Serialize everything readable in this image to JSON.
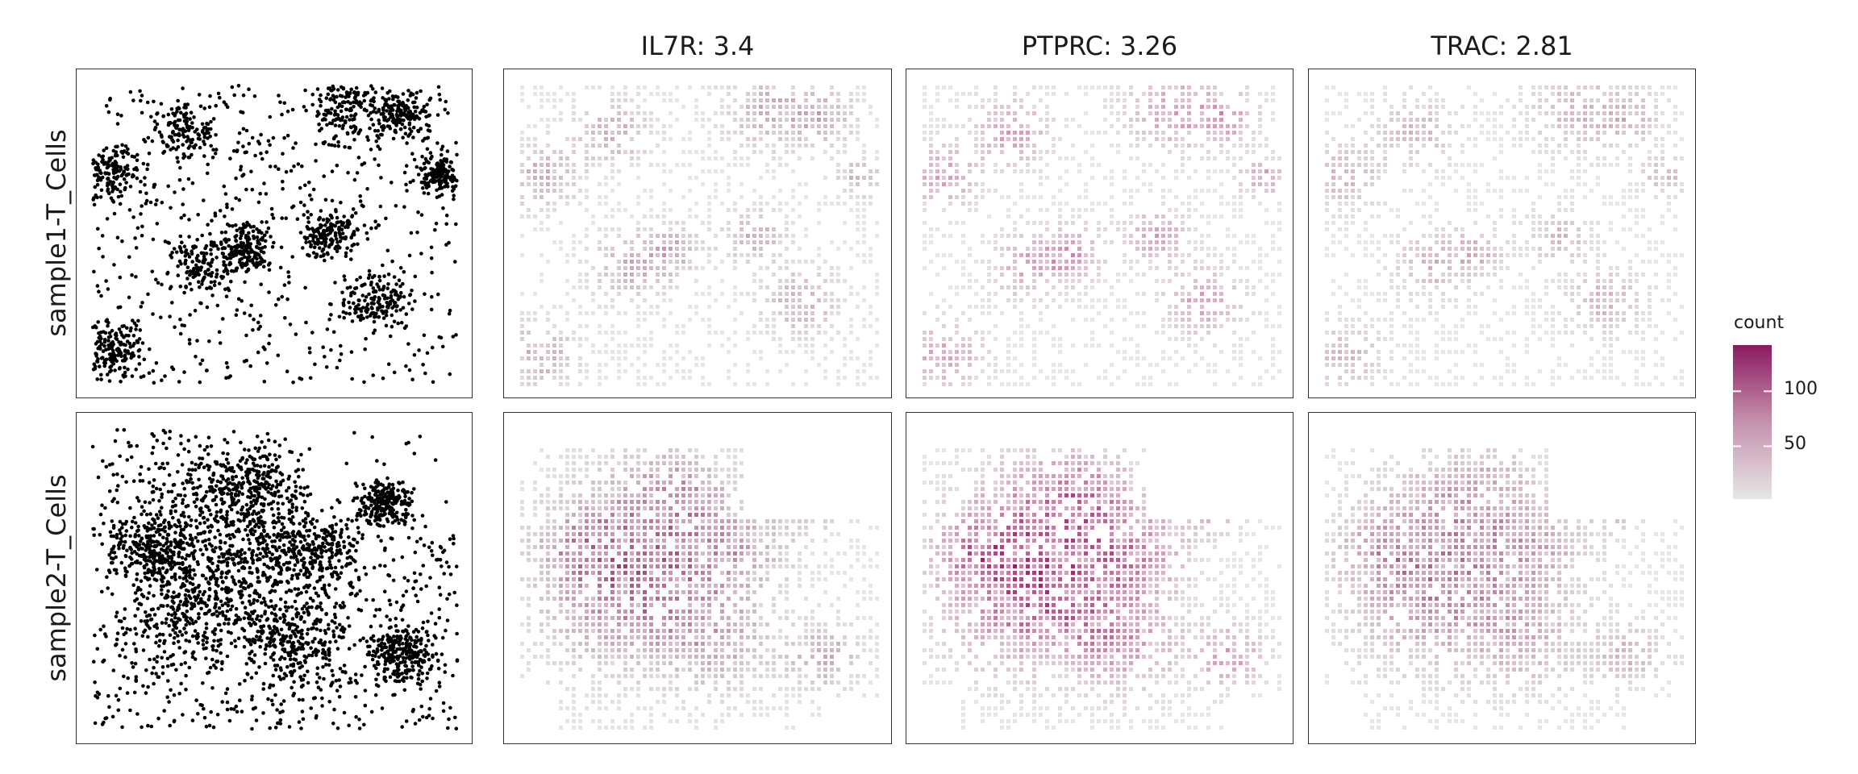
{
  "chart_data": {
    "type": "heatmap",
    "description_of_layout": "",
    "columns": [
      {
        "title": "",
        "kind": "scatter",
        "color": "#000000"
      },
      {
        "title": "IL7R: 3.4",
        "kind": "hexbin"
      },
      {
        "title": "PTPRC: 3.26",
        "kind": "hexbin"
      },
      {
        "title": "TRAC: 2.81",
        "kind": "hexbin"
      }
    ],
    "rows": [
      "sample1-T_Cells",
      "sample2-T_Cells"
    ],
    "legend": {
      "title": "count",
      "ticks": [
        50,
        100
      ],
      "range": [
        2,
        142
      ],
      "low_color": "#e6e6e6",
      "high_color": "#8b1a60",
      "placement": "right"
    },
    "axes_visible": false,
    "grid": false
  }
}
